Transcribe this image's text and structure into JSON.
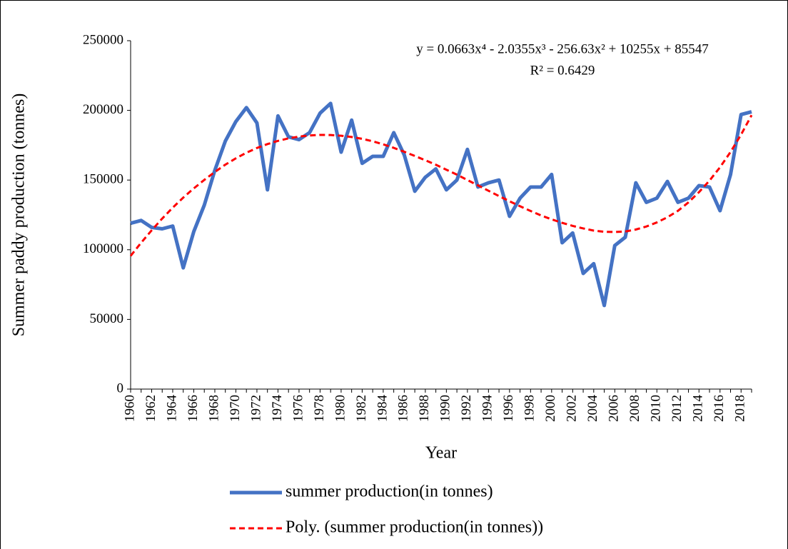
{
  "chart_data": {
    "type": "line",
    "x_label": "Year",
    "y_label": "Summer paddy production (tonnes)",
    "annotations": [
      "y = 0.0663x⁴ - 2.0355x³ - 256.63x² + 10255x + 85547",
      "R² = 0.6429"
    ],
    "categories": [
      "1960",
      null,
      "1962",
      null,
      "1964",
      null,
      "1966",
      null,
      "1968",
      null,
      "1970",
      null,
      "1972",
      null,
      "1974",
      null,
      "1976",
      null,
      "1978",
      null,
      "1980",
      null,
      "1982",
      null,
      "1984",
      null,
      "1986",
      null,
      "1988",
      null,
      "1990",
      null,
      "1992",
      null,
      "1994",
      null,
      "1996",
      null,
      "1998",
      null,
      "2000",
      null,
      "2002",
      null,
      "2004",
      null,
      "2006",
      null,
      "2008",
      null,
      "2010",
      null,
      "2012",
      null,
      "2014",
      null,
      "2016",
      null,
      "2018",
      null
    ],
    "series": [
      {
        "name": "summer production(in tonnes)",
        "color": "#4472c4",
        "dash": false,
        "values": [
          119000,
          121000,
          116000,
          115000,
          117000,
          87000,
          113000,
          132000,
          157000,
          178000,
          192000,
          202000,
          191000,
          143000,
          196000,
          181000,
          179000,
          184000,
          198000,
          205000,
          170000,
          193000,
          162000,
          167000,
          167000,
          184000,
          168000,
          142000,
          152000,
          158000,
          143000,
          150000,
          172000,
          145000,
          148000,
          150000,
          124000,
          137000,
          145000,
          145000,
          154000,
          105000,
          112000,
          83000,
          90000,
          60000,
          103000,
          109000,
          148000,
          134000,
          137000,
          149000,
          134000,
          137000,
          146000,
          145000,
          128000,
          154000,
          197000,
          199000
        ]
      },
      {
        "name": "Poly. (summer production(in tonnes))",
        "color": "#ff0000",
        "dash": true,
        "values": [
          95543,
          105015,
          113953,
          122348,
          130193,
          137400,
          144000,
          150100,
          155800,
          161061,
          165600,
          169600,
          173000,
          175800,
          178116,
          179900,
          181200,
          182000,
          182400,
          182319,
          181800,
          180900,
          179600,
          177800,
          175621,
          173100,
          170300,
          167300,
          164200,
          160974,
          157400,
          153900,
          150000,
          146200,
          142319,
          138500,
          134800,
          131200,
          127800,
          124595,
          121800,
          119300,
          117100,
          115300,
          113732,
          112900,
          112700,
          113100,
          114500,
          116659,
          119600,
          123300,
          127900,
          134000,
          141296,
          149596,
          159194,
          170168,
          182595,
          196559
        ]
      }
    ],
    "ylim": [
      0,
      250000
    ],
    "yticks": [
      0,
      50000,
      100000,
      150000,
      200000,
      250000
    ],
    "grid": false
  }
}
